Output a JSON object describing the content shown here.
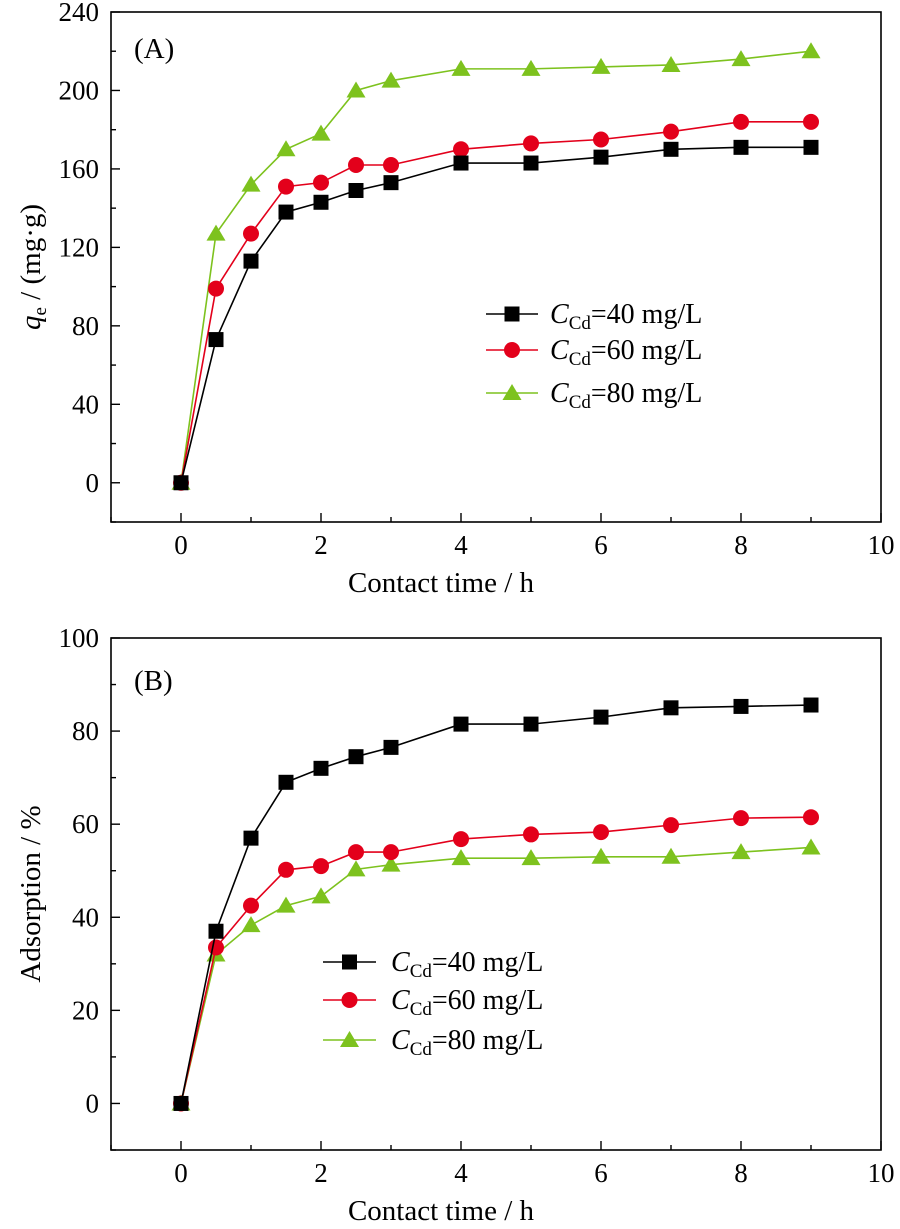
{
  "chart_data": [
    {
      "type": "line",
      "panel_label": "(A)",
      "xlabel": "Contact time / h",
      "ylabel_main": "q",
      "ylabel_sub": "e",
      "ylabel_rest": " / (mg·g)",
      "xlim": [
        -1,
        10
      ],
      "ylim": [
        -20,
        240
      ],
      "xticks": [
        0,
        2,
        4,
        6,
        8,
        10
      ],
      "yticks": [
        0,
        40,
        80,
        120,
        160,
        200,
        240
      ],
      "legend_position": "center-right",
      "series": [
        {
          "name": "C_Cd=40 mg/L",
          "label_main": "C",
          "label_sub": "Cd",
          "label_rest": "=40 mg/L",
          "color": "#000000",
          "marker": "square",
          "x": [
            0,
            0.5,
            1,
            1.5,
            2,
            2.5,
            3,
            4,
            5,
            6,
            7,
            8,
            9
          ],
          "y": [
            0,
            73,
            113,
            138,
            143,
            149,
            153,
            163,
            163,
            166,
            170,
            171,
            171
          ]
        },
        {
          "name": "C_Cd=60 mg/L",
          "label_main": "C",
          "label_sub": "Cd",
          "label_rest": "=60 mg/L",
          "color": "#e3001b",
          "marker": "circle",
          "x": [
            0,
            0.5,
            1,
            1.5,
            2,
            2.5,
            3,
            4,
            5,
            6,
            7,
            8,
            9
          ],
          "y": [
            0,
            99,
            127,
            151,
            153,
            162,
            162,
            170,
            173,
            175,
            179,
            184,
            184
          ]
        },
        {
          "name": "C_Cd=80 mg/L",
          "label_main": "C",
          "label_sub": "Cd",
          "label_rest": "=80 mg/L",
          "color": "#7dc21e",
          "marker": "triangle",
          "x": [
            0,
            0.5,
            1,
            1.5,
            2,
            2.5,
            3,
            4,
            5,
            6,
            7,
            8,
            9
          ],
          "y": [
            0,
            127,
            152,
            170,
            178,
            200,
            205,
            211,
            211,
            212,
            213,
            216,
            220
          ]
        }
      ]
    },
    {
      "type": "line",
      "panel_label": "(B)",
      "xlabel": "Contact time / h",
      "ylabel_main": "Adsorption / %",
      "ylabel_sub": "",
      "ylabel_rest": "",
      "xlim": [
        -1,
        10
      ],
      "ylim": [
        -10,
        100
      ],
      "xticks": [
        0,
        2,
        4,
        6,
        8,
        10
      ],
      "yticks": [
        0,
        20,
        40,
        60,
        80,
        100
      ],
      "legend_position": "center",
      "series": [
        {
          "name": "C_Cd=40 mg/L",
          "label_main": "C",
          "label_sub": "Cd",
          "label_rest": "=40 mg/L",
          "color": "#000000",
          "marker": "square",
          "x": [
            0,
            0.5,
            1,
            1.5,
            2,
            2.5,
            3,
            4,
            5,
            6,
            7,
            8,
            9
          ],
          "y": [
            0,
            37,
            57,
            69,
            72,
            74.5,
            76.5,
            81.5,
            81.5,
            83,
            85,
            85.3,
            85.6
          ]
        },
        {
          "name": "C_Cd=60 mg/L",
          "label_main": "C",
          "label_sub": "Cd",
          "label_rest": "=60 mg/L",
          "color": "#e3001b",
          "marker": "circle",
          "x": [
            0,
            0.5,
            1,
            1.5,
            2,
            2.5,
            3,
            4,
            5,
            6,
            7,
            8,
            9
          ],
          "y": [
            0,
            33.5,
            42.5,
            50.2,
            51,
            54,
            54,
            56.8,
            57.8,
            58.3,
            59.8,
            61.3,
            61.5
          ]
        },
        {
          "name": "C_Cd=80 mg/L",
          "label_main": "C",
          "label_sub": "Cd",
          "label_rest": "=80 mg/L",
          "color": "#7dc21e",
          "marker": "triangle",
          "x": [
            0,
            0.5,
            1,
            1.5,
            2,
            2.5,
            3,
            4,
            5,
            6,
            7,
            8,
            9
          ],
          "y": [
            0,
            32,
            38.3,
            42.5,
            44.5,
            50.3,
            51.3,
            52.7,
            52.7,
            53,
            53,
            54,
            55
          ]
        }
      ]
    }
  ]
}
